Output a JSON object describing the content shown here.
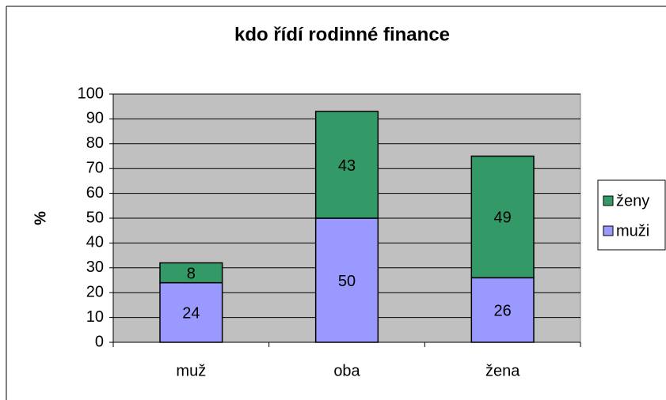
{
  "chart_data": {
    "type": "stacked_bar",
    "title": "kdo řídí rodinné finance",
    "y_label": "%",
    "categories": [
      "muž",
      "oba",
      "žena"
    ],
    "series": [
      {
        "name": "muži",
        "color": "#9999ff",
        "values": [
          24,
          50,
          26
        ]
      },
      {
        "name": "ženy",
        "color": "#339966",
        "values": [
          8,
          43,
          49
        ]
      }
    ],
    "ylim": [
      0,
      100
    ],
    "yticks": [
      0,
      10,
      20,
      30,
      40,
      50,
      60,
      70,
      80,
      90,
      100
    ],
    "grid": true,
    "legend": "right",
    "plot_background": "#c0c0c0"
  }
}
